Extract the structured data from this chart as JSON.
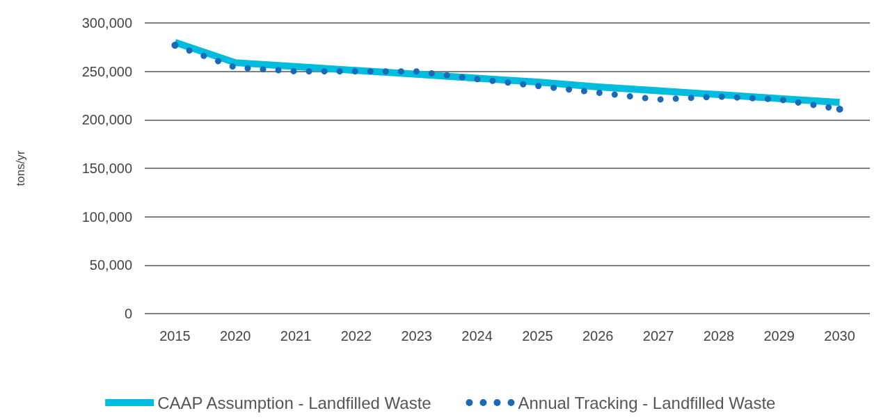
{
  "chart_data": {
    "type": "line",
    "ylabel": "tons/yr",
    "categories": [
      "2015",
      "2020",
      "2021",
      "2022",
      "2023",
      "2024",
      "2025",
      "2026",
      "2027",
      "2028",
      "2029",
      "2030"
    ],
    "series": [
      {
        "name": "CAAP Assumption - Landfilled Waste",
        "color": "#00bcdf",
        "line_style": "solid",
        "values": [
          280000,
          259000,
          255000,
          251000,
          247000,
          243000,
          239000,
          234000,
          230000,
          226000,
          222000,
          218000
        ]
      },
      {
        "name": "Annual Tracking - Landfilled Waste",
        "color": "#1b6ab7",
        "line_style": "dotted",
        "values": [
          277000,
          254000,
          250000,
          250000,
          250000,
          242000,
          235000,
          228000,
          221000,
          224000,
          221000,
          211000
        ]
      }
    ],
    "ylim": [
      0,
      300000
    ],
    "yticks": [
      0,
      {
        "value": 50000,
        "label": "50,000"
      },
      {
        "value": 100000,
        "label": "100,000"
      },
      {
        "value": 150000,
        "label": "150,000"
      },
      {
        "value": 200000,
        "label": "200,000"
      },
      {
        "value": 250000,
        "label": "250,000"
      },
      {
        "value": 300000,
        "label": "300,000"
      }
    ],
    "grid": "y",
    "legend": "bottom",
    "marker": "none"
  }
}
